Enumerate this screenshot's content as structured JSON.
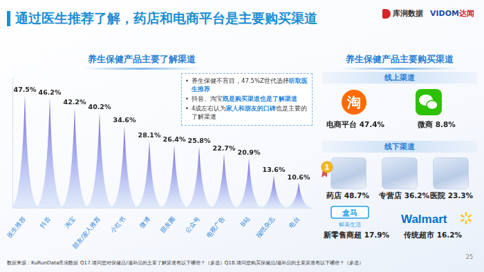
{
  "title": "通过医生推荐了解，药店和电商平台是主要购买渠道",
  "logos": {
    "left": "库润数据",
    "right_main": "VIDOM",
    "right_sub": "达闻"
  },
  "chart_data": {
    "type": "bar",
    "title": "养生保健产品主要了解渠道",
    "categories": [
      "医生推荐",
      "抖音",
      "淘宝",
      "朋友/家人推荐",
      "小红书",
      "微博",
      "朋友圈",
      "公众号",
      "电视广告",
      "B站",
      "报纸杂志",
      "电台"
    ],
    "values": [
      47.5,
      46.2,
      42.2,
      40.2,
      34.6,
      28.1,
      26.4,
      25.8,
      22.7,
      20.9,
      13.6,
      10.6
    ],
    "value_labels": [
      "47.5%",
      "46.2%",
      "42.2%",
      "40.2%",
      "34.6%",
      "28.1%",
      "26.4%",
      "25.8%",
      "22.7%",
      "20.9%",
      "13.6%",
      "10.6%"
    ],
    "color": "#7a62d6",
    "ylim": [
      0,
      55
    ],
    "grid": false,
    "data_labels": true,
    "tick_labels": "x",
    "annotations": [
      {
        "before": "养生保健不盲目，47.5%Z世代选择",
        "emphasis": "听取医生推荐",
        "after": ""
      },
      {
        "before": "抖音、淘宝",
        "emphasis": "既是购买渠道也是了解渠道",
        "after": ""
      },
      {
        "before": "4成左右认为",
        "emphasis": "家人和朋友的口碑",
        "after": "也是主要的了解渠道"
      }
    ]
  },
  "purchase_channels": {
    "title": "养生保健产品主要购买渠道",
    "online": {
      "title": "线上渠道",
      "items": [
        {
          "label": "电商平台",
          "value": "47.4%",
          "logo": "淘"
        },
        {
          "label": "微商",
          "value": "8.8%"
        }
      ]
    },
    "offline": {
      "title": "线下渠道",
      "items": [
        {
          "label": "药店",
          "value": "48.7%",
          "badge": "1"
        },
        {
          "label": "专营店",
          "value": "36.2%"
        },
        {
          "label": "医院",
          "value": "23.3%"
        },
        {
          "label": "新零售商超",
          "value": "17.9%",
          "logo": [
            "盒马",
            "鲜美生活"
          ]
        },
        {
          "label": "传统超市",
          "value": "16.2%",
          "logo": "Walmart"
        }
      ]
    }
  },
  "source": "数据来源：KuRunData库润数据 Q17.请问您对保健品/滋补品的主要了解渠道有以下哪些？（多选）Q18.请问您购买保健品/滋补品的主要渠道有以下哪些？（多选）",
  "page": 25
}
